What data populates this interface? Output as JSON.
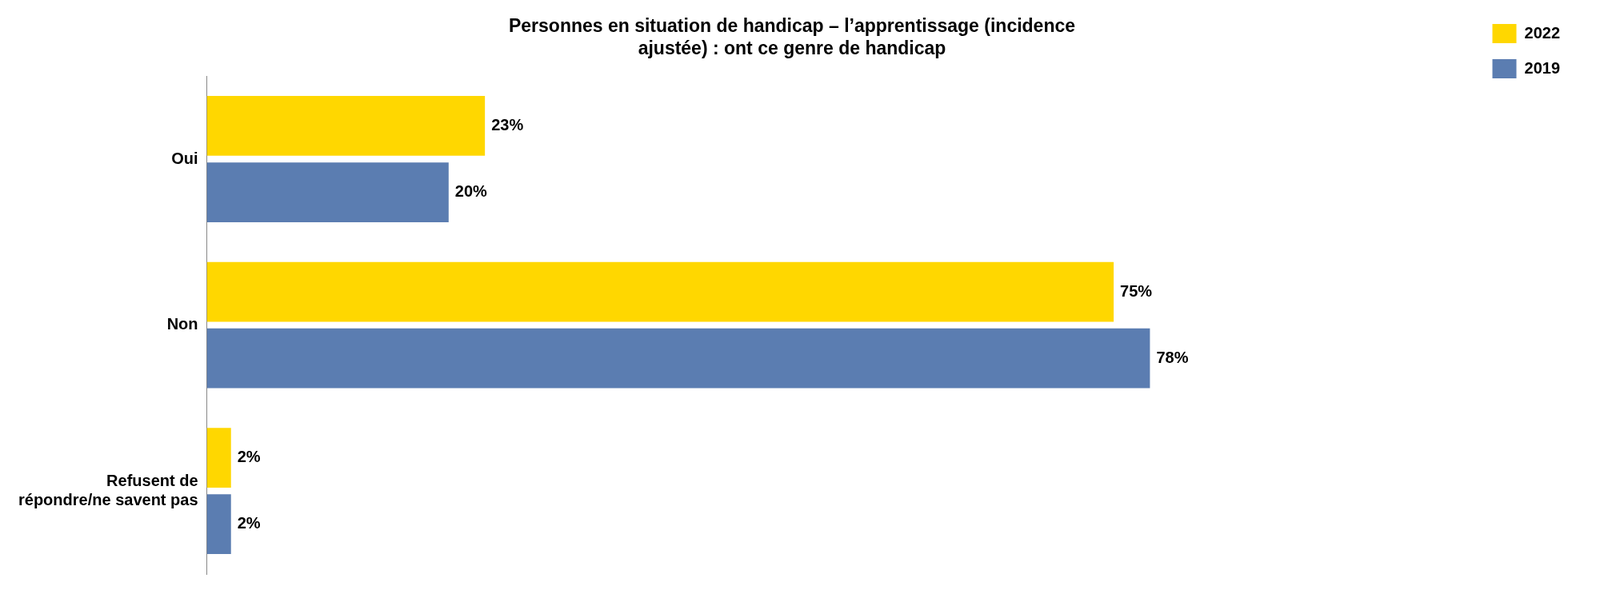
{
  "chart_data": {
    "type": "bar",
    "orientation": "horizontal",
    "title": "Personnes en situation de handicap – l’apprentissage (incidence\najustée) : ont ce genre de handicap",
    "categories": [
      "Oui",
      "Non",
      "Refusent de\nrépondre/ne savent pas"
    ],
    "series": [
      {
        "name": "2022",
        "color": "#FFD700",
        "values": [
          23,
          75,
          2
        ],
        "value_labels": [
          "23%",
          "75%",
          "2%"
        ]
      },
      {
        "name": "2019",
        "color": "#5B7DB1",
        "values": [
          20,
          78,
          2
        ],
        "value_labels": [
          "20%",
          "78%",
          "2%"
        ]
      }
    ],
    "xlim": [
      0,
      105
    ],
    "grid": false,
    "legend": "upper right",
    "data_labels": true,
    "tick_labels": "y"
  }
}
